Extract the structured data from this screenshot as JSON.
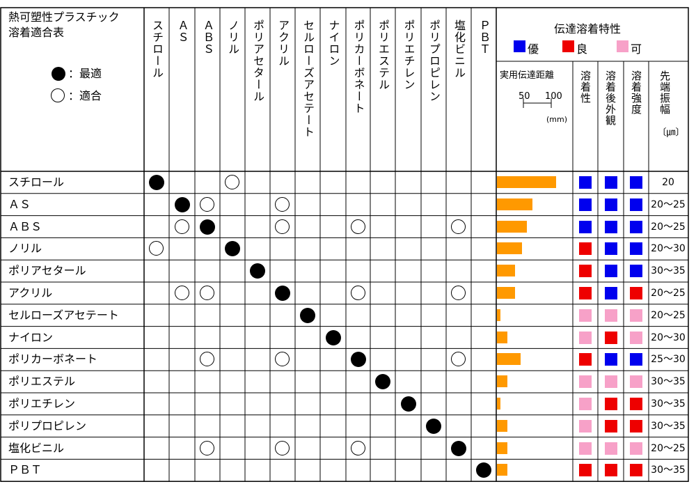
{
  "title_line1": "熱可塑性プラスチック",
  "title_line2": "溶着適合表",
  "legend_mark": {
    "best_label": "：最適",
    "ok_label": "：適合"
  },
  "columns": [
    "スチロール",
    "ＡＳ",
    "ＡＢＳ",
    "ノリル",
    "ポリアセタール",
    "アクリル",
    "セルローズアセテート",
    "ナイロン",
    "ポリカーボネート",
    "ポリエステル",
    "ポリエチレン",
    "ポリプロピレン",
    "塩化ビニル",
    "ＰＢＴ"
  ],
  "welding_header": "伝達溶着特性",
  "grade_legend": [
    {
      "label": "優",
      "color": "#0000ee"
    },
    {
      "label": "良",
      "color": "#ee0000"
    },
    {
      "label": "可",
      "color": "#f7a1c8"
    }
  ],
  "distance_header": "実用伝達距離",
  "distance_ticks": [
    "50",
    "100"
  ],
  "distance_unit": "(mm)",
  "distance_bar_color": "#ff9900",
  "attr_headers": [
    "溶着性",
    "溶着後外観",
    "溶着強度"
  ],
  "amp_header": "先端振幅",
  "amp_unit": "〔㎛〕",
  "rows": [
    {
      "name": "スチロール",
      "best": [
        0
      ],
      "ok": [
        3
      ],
      "distance": 100,
      "grades": [
        "優",
        "優",
        "優"
      ],
      "amplitude": "20"
    },
    {
      "name": "ＡＳ",
      "best": [
        1
      ],
      "ok": [
        2,
        5
      ],
      "distance": 60,
      "grades": [
        "優",
        "優",
        "優"
      ],
      "amplitude": "20～25"
    },
    {
      "name": "ＡＢＳ",
      "best": [
        2
      ],
      "ok": [
        1,
        5,
        8,
        12
      ],
      "distance": 50,
      "grades": [
        "優",
        "優",
        "優"
      ],
      "amplitude": "20～25"
    },
    {
      "name": "ノリル",
      "best": [
        3
      ],
      "ok": [
        0
      ],
      "distance": 42,
      "grades": [
        "良",
        "優",
        "優"
      ],
      "amplitude": "20～30"
    },
    {
      "name": "ポリアセタール",
      "best": [
        4
      ],
      "ok": [],
      "distance": 30,
      "grades": [
        "良",
        "優",
        "優"
      ],
      "amplitude": "30～35"
    },
    {
      "name": "アクリル",
      "best": [
        5
      ],
      "ok": [
        1,
        2,
        8,
        12
      ],
      "distance": 30,
      "grades": [
        "良",
        "優",
        "良"
      ],
      "amplitude": "20～25"
    },
    {
      "name": "セルローズアセテート",
      "best": [
        6
      ],
      "ok": [],
      "distance": 6,
      "grades": [
        "可",
        "可",
        "可"
      ],
      "amplitude": "20～25"
    },
    {
      "name": "ナイロン",
      "best": [
        7
      ],
      "ok": [],
      "distance": 18,
      "grades": [
        "可",
        "良",
        "可"
      ],
      "amplitude": "20～30"
    },
    {
      "name": "ポリカーボネート",
      "best": [
        8
      ],
      "ok": [
        2,
        5,
        12
      ],
      "distance": 40,
      "grades": [
        "良",
        "優",
        "優"
      ],
      "amplitude": "25～30"
    },
    {
      "name": "ポリエステル",
      "best": [
        9
      ],
      "ok": [],
      "distance": 18,
      "grades": [
        "可",
        "可",
        "可"
      ],
      "amplitude": "30～35"
    },
    {
      "name": "ポリエチレン",
      "best": [
        10
      ],
      "ok": [],
      "distance": 6,
      "grades": [
        "可",
        "良",
        "良"
      ],
      "amplitude": "30～35"
    },
    {
      "name": "ポリプロピレン",
      "best": [
        11
      ],
      "ok": [],
      "distance": 18,
      "grades": [
        "可",
        "良",
        "良"
      ],
      "amplitude": "30～35"
    },
    {
      "name": "塩化ビニル",
      "best": [
        12
      ],
      "ok": [
        2,
        5,
        8
      ],
      "distance": 18,
      "grades": [
        "可",
        "可",
        "可"
      ],
      "amplitude": "20～25"
    },
    {
      "name": "ＰＢＴ",
      "best": [
        13
      ],
      "ok": [],
      "distance": 18,
      "grades": [
        "良",
        "良",
        "良"
      ],
      "amplitude": "30～35"
    }
  ]
}
